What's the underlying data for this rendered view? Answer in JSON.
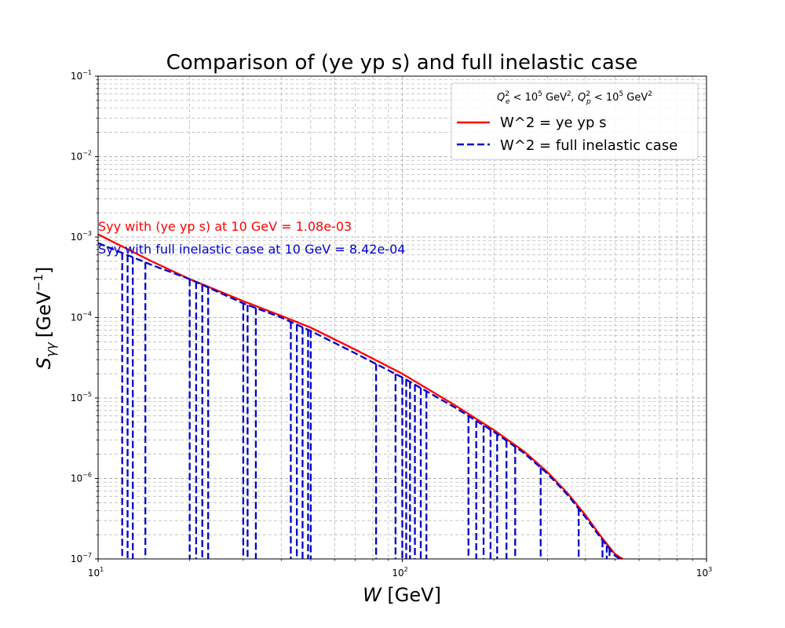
{
  "chart_data": {
    "type": "line",
    "title": "Comparison of (ye yp s) and full inelastic case",
    "xlabel": "W [GeV]",
    "ylabel": "S_γγ [GeV^-1]",
    "x_scale": "log",
    "y_scale": "log",
    "xlim": [
      10,
      1000
    ],
    "ylim": [
      1e-07,
      0.1
    ],
    "grid": true,
    "x_ticks": [
      {
        "value": 10,
        "mantissa": "10",
        "exp": "1"
      },
      {
        "value": 100,
        "mantissa": "10",
        "exp": "2"
      },
      {
        "value": 1000,
        "mantissa": "10",
        "exp": "3"
      }
    ],
    "y_ticks": [
      {
        "value": 1e-07,
        "mantissa": "10",
        "exp": "−7"
      },
      {
        "value": 1e-06,
        "mantissa": "10",
        "exp": "−6"
      },
      {
        "value": 1e-05,
        "mantissa": "10",
        "exp": "−5"
      },
      {
        "value": 0.0001,
        "mantissa": "10",
        "exp": "−4"
      },
      {
        "value": 0.001,
        "mantissa": "10",
        "exp": "−3"
      },
      {
        "value": 0.01,
        "mantissa": "10",
        "exp": "−2"
      },
      {
        "value": 0.1,
        "mantissa": "10",
        "exp": "−1"
      }
    ],
    "legend": {
      "placement": "top-right",
      "title": "Q_e^2 < 10^5 GeV^2, Q_p^2 < 10^5 GeV^2",
      "entries": [
        "W^2 = ye yp s",
        "W^2 = full inelastic case"
      ]
    },
    "series": [
      {
        "name": "W^2 = ye yp s",
        "color": "#ff0000",
        "style": "solid",
        "x": [
          10,
          15,
          20,
          30,
          40,
          50,
          70,
          100,
          150,
          200,
          250,
          300,
          350,
          400,
          450,
          500,
          530
        ],
        "y": [
          0.00108,
          0.0005,
          0.0003,
          0.00016,
          0.000105,
          7.5e-05,
          4e-05,
          2e-05,
          8e-06,
          4e-06,
          2.2e-06,
          1.2e-06,
          6.5e-07,
          3.5e-07,
          1.9e-07,
          1.15e-07,
          1e-07
        ]
      },
      {
        "name": "W^2 = full inelastic case",
        "color": "#0000cc",
        "style": "dashed",
        "x": [
          10,
          15,
          20,
          30,
          40,
          50,
          70,
          100,
          150,
          200,
          250,
          300,
          350,
          400,
          450,
          500,
          520
        ],
        "y": [
          0.000842,
          0.00045,
          0.0003,
          0.00015,
          0.0001,
          6.8e-05,
          3.6e-05,
          1.8e-05,
          7.5e-06,
          3.8e-06,
          2.1e-06,
          1.15e-06,
          6.2e-07,
          3.3e-07,
          1.8e-07,
          1.1e-07,
          1e-07
        ],
        "drop_x": [
          12,
          12.5,
          13,
          14.3,
          20,
          21,
          22,
          23,
          30,
          31,
          33,
          43,
          45,
          47,
          49,
          50,
          82,
          95,
          100,
          103,
          106,
          110,
          115,
          120,
          165,
          175,
          185,
          195,
          205,
          220,
          235,
          285,
          380,
          455,
          470,
          480
        ]
      }
    ],
    "annotations": [
      {
        "text": "Syy with (ye yp s) at 10 GeV =  1.08e-03",
        "color": "#ff0000"
      },
      {
        "text": "Syy with full inelastic case at 10 GeV =  8.42e-04",
        "color": "#0000cc"
      }
    ]
  },
  "labels": {
    "ylabel_main": "S",
    "ylabel_sub": "γγ",
    "ylabel_unit": "[GeV",
    "ylabel_exp": "−1",
    "ylabel_close": "]",
    "xlabel_var": "W",
    "xlabel_unit": " [GeV]",
    "legend_title_1": "Q",
    "legend_title_1_sup": "2",
    "legend_title_1_sub": "e",
    "legend_title_mid": " < 10",
    "legend_title_mid_sup": "5",
    "legend_title_gev": " GeV",
    "legend_title_gev_sup": "2",
    "legend_title_sep": ", Q",
    "legend_title_2_sup": "2",
    "legend_title_2_sub": "p",
    "legend_title_end": " < 10",
    "legend_title_end_sup": "5",
    "legend_title_gev2": " GeV",
    "legend_title_gev2_sup": "2"
  }
}
